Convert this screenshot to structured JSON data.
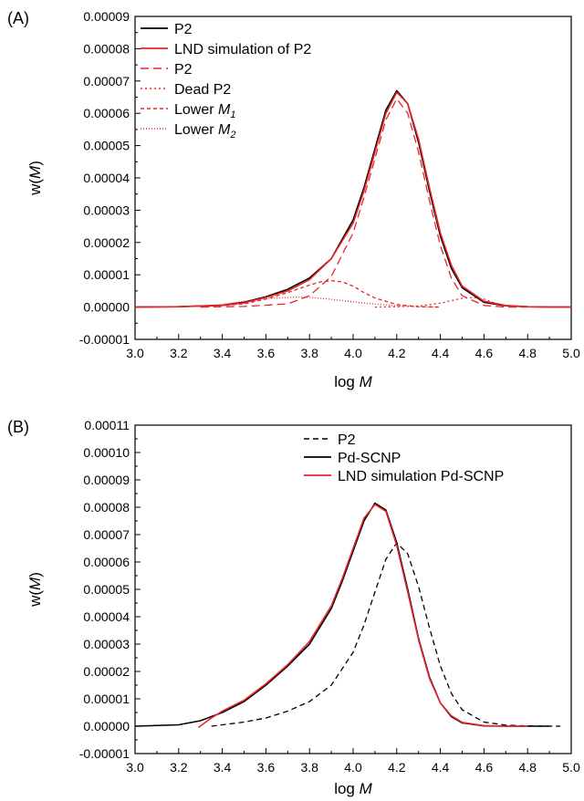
{
  "chart_data": [
    {
      "panel_label": "(A)",
      "type": "line",
      "xlabel": "log M",
      "ylabel": "w(M)",
      "xlim": [
        3.0,
        5.0
      ],
      "ylim": [
        -1e-05,
        9e-05
      ],
      "grid": false,
      "legend_position": "top-left",
      "x_ticks": [
        "3.0",
        "3.2",
        "3.4",
        "3.6",
        "3.8",
        "4.0",
        "4.2",
        "4.4",
        "4.6",
        "4.8",
        "5.0"
      ],
      "y_ticks": [
        "-0.00001",
        "0.00000",
        "0.00001",
        "0.00002",
        "0.00003",
        "0.00004",
        "0.00005",
        "0.00006",
        "0.00007",
        "0.00008",
        "0.00009"
      ],
      "series": [
        {
          "name": "P2",
          "color": "#000000",
          "style": "solid",
          "x": [
            3.0,
            3.2,
            3.4,
            3.5,
            3.6,
            3.7,
            3.8,
            3.9,
            4.0,
            4.05,
            4.1,
            4.15,
            4.2,
            4.25,
            4.3,
            4.35,
            4.4,
            4.45,
            4.5,
            4.6,
            4.7,
            4.8,
            4.9,
            5.0
          ],
          "y": [
            0,
            1e-07,
            6e-07,
            1.5e-06,
            3.2e-06,
            5.5e-06,
            9e-06,
            1.5e-05,
            2.7e-05,
            3.7e-05,
            4.9e-05,
            6.1e-05,
            6.7e-05,
            6.3e-05,
            5.1e-05,
            3.6e-05,
            2.2e-05,
            1.2e-05,
            6e-06,
            1.5e-06,
            4e-07,
            1e-07,
            0,
            0
          ]
        },
        {
          "name": "LND simulation of P2",
          "color": "#e8262a",
          "style": "solid",
          "x": [
            3.0,
            3.2,
            3.4,
            3.5,
            3.6,
            3.7,
            3.8,
            3.9,
            4.0,
            4.05,
            4.1,
            4.15,
            4.2,
            4.25,
            4.3,
            4.35,
            4.4,
            4.45,
            4.5,
            4.6,
            4.7,
            4.8,
            4.9,
            5.0
          ],
          "y": [
            0,
            1e-07,
            5e-07,
            1.3e-06,
            3e-06,
            5e-06,
            8.5e-06,
            1.5e-05,
            2.6e-05,
            3.6e-05,
            4.8e-05,
            6e-05,
            6.65e-05,
            6.3e-05,
            5.2e-05,
            3.7e-05,
            2.3e-05,
            1.3e-05,
            6.5e-06,
            1.8e-06,
            5e-07,
            1e-07,
            0,
            0
          ]
        },
        {
          "name": "P2",
          "color": "#e8262a",
          "style": "longdash",
          "x": [
            3.3,
            3.5,
            3.7,
            3.8,
            3.9,
            4.0,
            4.05,
            4.1,
            4.15,
            4.2,
            4.25,
            4.3,
            4.35,
            4.4,
            4.45,
            4.5,
            4.6,
            4.7,
            4.8
          ],
          "y": [
            0,
            2e-07,
            1e-06,
            3.5e-06,
            9.5e-06,
            2.3e-05,
            3.4e-05,
            4.6e-05,
            5.8e-05,
            6.45e-05,
            6e-05,
            4.8e-05,
            3.3e-05,
            1.9e-05,
            9e-06,
            3.5e-06,
            5e-07,
            0,
            0
          ]
        },
        {
          "name": "Dead P2",
          "color": "#e8262a",
          "style": "dot",
          "x": [
            4.1,
            4.2,
            4.3,
            4.4,
            4.45,
            4.5,
            4.55,
            4.6,
            4.65,
            4.7,
            4.8
          ],
          "y": [
            0,
            1e-07,
            3e-07,
            1.2e-06,
            2e-06,
            2.7e-06,
            3e-06,
            2.5e-06,
            1.2e-06,
            4e-07,
            0
          ]
        },
        {
          "name": "Lower M1",
          "color": "#e8262a",
          "style": "shortdash",
          "x": [
            3.3,
            3.5,
            3.6,
            3.7,
            3.8,
            3.85,
            3.9,
            3.95,
            4.0,
            4.05,
            4.1,
            4.2,
            4.3,
            4.4
          ],
          "y": [
            0,
            1e-06,
            2.5e-06,
            4.5e-06,
            6.8e-06,
            7.8e-06,
            8.2e-06,
            7.8e-06,
            6.5e-06,
            4.5e-06,
            2.8e-06,
            8e-07,
            1e-07,
            0
          ]
        },
        {
          "name": "Lower M2",
          "color": "#e8262a",
          "style": "finedot",
          "x": [
            3.2,
            3.4,
            3.5,
            3.6,
            3.7,
            3.75,
            3.8,
            3.9,
            4.0,
            4.1,
            4.2,
            4.3,
            4.4
          ],
          "y": [
            0,
            8e-07,
            1.8e-06,
            2.6e-06,
            3e-06,
            3.1e-06,
            3e-06,
            2.4e-06,
            1.6e-06,
            9e-07,
            4e-07,
            1e-07,
            0
          ]
        }
      ],
      "legend": [
        {
          "label": "P2",
          "sub": "",
          "color": "#000000",
          "style": "solid"
        },
        {
          "label": "LND simulation of P2",
          "sub": "",
          "color": "#e8262a",
          "style": "solid"
        },
        {
          "label": "P2",
          "sub": "",
          "color": "#e8262a",
          "style": "longdash"
        },
        {
          "label": "Dead P2",
          "sub": "",
          "color": "#e8262a",
          "style": "dot"
        },
        {
          "label": "Lower ",
          "italic": "M",
          "sub": "1",
          "color": "#e8262a",
          "style": "shortdash"
        },
        {
          "label": "Lower ",
          "italic": "M",
          "sub": "2",
          "color": "#e8262a",
          "style": "finedot"
        }
      ]
    },
    {
      "panel_label": "(B)",
      "type": "line",
      "xlabel": "log M",
      "ylabel": "w(M)",
      "xlim": [
        3.0,
        5.0
      ],
      "ylim": [
        -1e-05,
        0.00011
      ],
      "grid": false,
      "legend_position": "top-right",
      "x_ticks": [
        "3.0",
        "3.2",
        "3.4",
        "3.6",
        "3.8",
        "4.0",
        "4.2",
        "4.4",
        "4.6",
        "4.8",
        "5.0"
      ],
      "y_ticks": [
        "-0.00001",
        "0.00000",
        "0.00001",
        "0.00002",
        "0.00003",
        "0.00004",
        "0.00005",
        "0.00006",
        "0.00007",
        "0.00008",
        "0.00009",
        "0.00010",
        "0.00011"
      ],
      "series": [
        {
          "name": "P2",
          "color": "#000000",
          "style": "dash",
          "x": [
            3.35,
            3.5,
            3.6,
            3.7,
            3.8,
            3.9,
            4.0,
            4.05,
            4.1,
            4.15,
            4.2,
            4.25,
            4.3,
            4.35,
            4.4,
            4.45,
            4.5,
            4.6,
            4.7,
            4.8,
            4.95
          ],
          "y": [
            0,
            1.5e-06,
            3e-06,
            5.5e-06,
            9e-06,
            1.5e-05,
            2.7e-05,
            3.7e-05,
            4.9e-05,
            6.1e-05,
            6.7e-05,
            6.3e-05,
            5.1e-05,
            3.6e-05,
            2.2e-05,
            1.2e-05,
            6e-06,
            1.5e-06,
            4e-07,
            1e-07,
            0
          ]
        },
        {
          "name": "Pd-SCNP",
          "color": "#000000",
          "style": "solid",
          "x": [
            3.0,
            3.2,
            3.3,
            3.4,
            3.5,
            3.6,
            3.7,
            3.8,
            3.9,
            3.95,
            4.0,
            4.05,
            4.1,
            4.15,
            4.2,
            4.25,
            4.3,
            4.35,
            4.4,
            4.45,
            4.5,
            4.6,
            4.7,
            4.8,
            4.9
          ],
          "y": [
            0,
            5e-07,
            2e-06,
            5e-06,
            9e-06,
            1.5e-05,
            2.2e-05,
            3e-05,
            4.3e-05,
            5.3e-05,
            6.4e-05,
            7.5e-05,
            8.15e-05,
            7.9e-05,
            6.7e-05,
            5e-05,
            3.2e-05,
            1.8e-05,
            8.5e-06,
            3.5e-06,
            1.2e-06,
            1e-07,
            0,
            0,
            0
          ]
        },
        {
          "name": "LND simulation Pd-SCNP",
          "color": "#e8262a",
          "style": "solid",
          "x": [
            3.29,
            3.35,
            3.4,
            3.5,
            3.6,
            3.7,
            3.8,
            3.9,
            3.95,
            4.0,
            4.05,
            4.1,
            4.15,
            4.2,
            4.25,
            4.3,
            4.35,
            4.4,
            4.45,
            4.5,
            4.6,
            4.7,
            4.8
          ],
          "y": [
            -5e-07,
            3e-06,
            5.5e-06,
            9.5e-06,
            1.55e-05,
            2.25e-05,
            3.1e-05,
            4.4e-05,
            5.4e-05,
            6.5e-05,
            7.6e-05,
            8.1e-05,
            7.85e-05,
            6.6e-05,
            4.9e-05,
            3.15e-05,
            1.75e-05,
            8.5e-06,
            3.8e-06,
            1.4e-06,
            2e-07,
            0,
            0
          ]
        }
      ],
      "legend": [
        {
          "label": "P2",
          "sub": "",
          "color": "#000000",
          "style": "dash"
        },
        {
          "label": "Pd-SCNP",
          "sub": "",
          "color": "#000000",
          "style": "solid"
        },
        {
          "label": "LND simulation Pd-SCNP",
          "sub": "",
          "color": "#e8262a",
          "style": "solid"
        }
      ]
    }
  ]
}
